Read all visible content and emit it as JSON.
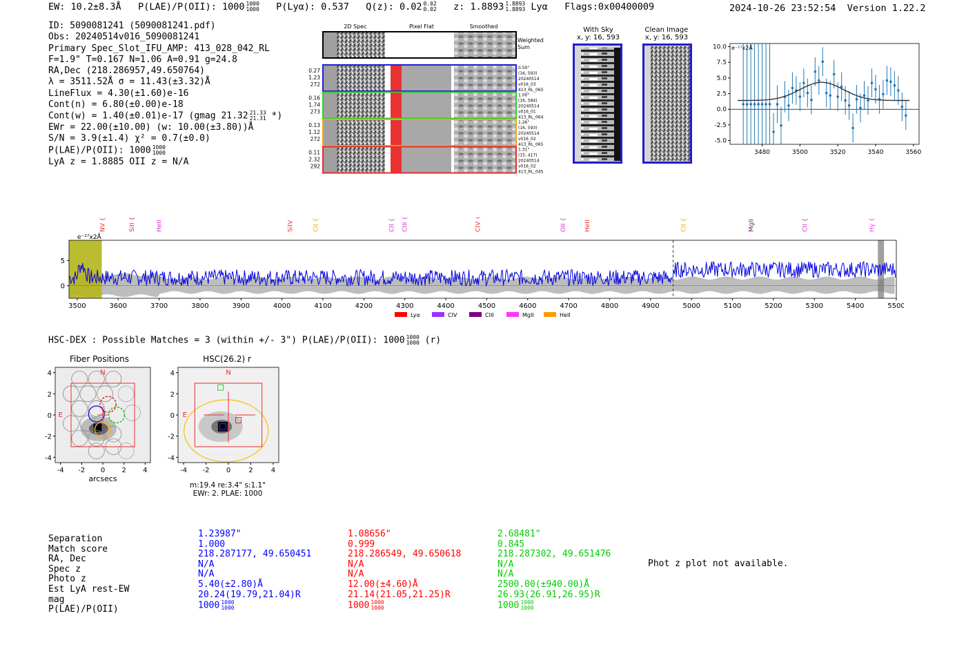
{
  "header": {
    "ew": "EW: 10.2±8.3Å",
    "plae_label": "P(LAE)/P(OII): 1000",
    "plae_sup": "1000",
    "plae_sub": "1000",
    "plya": "P(Lyα): 0.537",
    "qz_label": "Q(z): 0.02",
    "qz_sup": "0.02",
    "qz_sub": "0.02",
    "z_label": "z: 1.8893",
    "z_sup": "1.8893",
    "z_sub": "1.8893",
    "z_line": "Lyα",
    "flags": "Flags:0x00400009",
    "datetime": "2024-10-26 23:52:54",
    "version": "Version 1.22.2"
  },
  "info": {
    "id": "ID: 5090081241 (5090081241.pdf)",
    "obs": "Obs: 20240514v016_5090081241",
    "primary": "Primary Spec_Slot_IFU_AMP: 413_028_042_RL",
    "params": "F=1.9\"  T=0.167  N=1.06  A=0.91  g=24.8",
    "radec": "RA,Dec (218.286957,49.650764)",
    "lambda": "λ = 3511.52Å  σ = 11.43(±3.32)Å",
    "lineflux": "LineFlux = 4.30(±1.60)e-16",
    "contn": "Cont(n) = 6.80(±0.00)e-18",
    "contw": "Cont(w) = 1.40(±0.01)e-17 (gmag 21.32",
    "contw_sup": "21.33",
    "contw_sub": "21.31",
    "contw_end": "*)",
    "ewr": "EWr = 22.00(±10.00) (w: 10.00(±3.80))Å",
    "sn": "S/N = 3.9(±1.4)  χ² = 0.7(±0.0)",
    "plae": "P(LAE)/P(OII): 1000",
    "plae_sup": "1000",
    "plae_sub": "1000",
    "lyaz": "LyA z = 1.8885  OII z = N/A"
  },
  "cutouts": {
    "col_headers": [
      "2D Spec",
      "Pixel Flat",
      "Smoothed"
    ],
    "weighted_label": "Weighted Sum",
    "rows": [
      {
        "left": [
          "0.27",
          "1.23",
          "272"
        ],
        "right": [
          "0.50\"",
          "(16, 593)",
          "20240514",
          "v016_03",
          "413_RL_065"
        ],
        "color": "#1f1fd0"
      },
      {
        "left": [
          "0.16",
          "1.74",
          "273"
        ],
        "right": [
          "1.00\"",
          "(16, 584)",
          "20240514",
          "v016_01",
          "413_RL_064"
        ],
        "color": "#33cc33"
      },
      {
        "left": [
          "0.13",
          "1.12",
          "272"
        ],
        "right": [
          "1.26\"",
          "(16, 593)",
          "20240514",
          "v016_02",
          "413_RL_065"
        ],
        "color": "#f2a51a"
      },
      {
        "left": [
          "0.11",
          "2.32",
          "292"
        ],
        "right": [
          "1.31\"",
          "(15, 417)",
          "20240514",
          "v016_02",
          "413_RL_045"
        ],
        "color": "#e62e2e"
      }
    ],
    "with_sky_title": "With Sky",
    "with_sky_sub": "x, y: 16, 593",
    "clean_title": "Clean Image",
    "clean_sub": "x, y: 16, 593"
  },
  "fit_chart": {
    "type": "scatter",
    "scale_label": "e⁻¹⁷x2Å",
    "xlim": [
      3463,
      3563
    ],
    "ylim": [
      -5.6,
      10.5
    ],
    "xticks": [
      3480,
      3500,
      3520,
      3540,
      3560
    ],
    "yticks": [
      -5.0,
      -2.5,
      0.0,
      2.5,
      5.0,
      7.5,
      10.0
    ],
    "points": [
      [
        3470,
        0.8,
        12
      ],
      [
        3472,
        0.8,
        12
      ],
      [
        3474,
        0.8,
        12
      ],
      [
        3476,
        0.8,
        12
      ],
      [
        3478,
        0.8,
        12
      ],
      [
        3480,
        0.8,
        12
      ],
      [
        3482,
        0.8,
        12
      ],
      [
        3484,
        0.8,
        12
      ],
      [
        3486,
        -3.6,
        3
      ],
      [
        3488,
        0.8,
        3
      ],
      [
        3490,
        -2.6,
        3
      ],
      [
        3492,
        2.0,
        2.5
      ],
      [
        3494,
        0.6,
        2.5
      ],
      [
        3496,
        3.4,
        2.5
      ],
      [
        3498,
        3.0,
        2.3
      ],
      [
        3500,
        2.0,
        2.3
      ],
      [
        3502,
        4.2,
        2.3
      ],
      [
        3504,
        2.6,
        2.3
      ],
      [
        3506,
        1.5,
        2.3
      ],
      [
        3508,
        6.0,
        2.3
      ],
      [
        3510,
        4.6,
        2.3
      ],
      [
        3512,
        7.6,
        2.3
      ],
      [
        3514,
        2.6,
        2.3
      ],
      [
        3516,
        2.2,
        2.3
      ],
      [
        3518,
        5.6,
        2.3
      ],
      [
        3520,
        2.0,
        2.3
      ],
      [
        3522,
        3.6,
        2.3
      ],
      [
        3524,
        1.4,
        2.3
      ],
      [
        3526,
        0.6,
        2.3
      ],
      [
        3528,
        -3.0,
        2.3
      ],
      [
        3530,
        1.6,
        2.3
      ],
      [
        3532,
        0.2,
        2.3
      ],
      [
        3534,
        2.2,
        2.3
      ],
      [
        3536,
        1.4,
        2.3
      ],
      [
        3538,
        4.2,
        2.3
      ],
      [
        3540,
        3.2,
        2.3
      ],
      [
        3542,
        1.6,
        2.3
      ],
      [
        3544,
        2.4,
        2.3
      ],
      [
        3546,
        4.6,
        2.3
      ],
      [
        3548,
        4.4,
        2.3
      ],
      [
        3550,
        3.8,
        2.3
      ],
      [
        3552,
        3.0,
        2.3
      ],
      [
        3554,
        0.4,
        2.3
      ],
      [
        3556,
        -1.0,
        2.3
      ]
    ],
    "model": {
      "amplitude": 2.9,
      "center": 3511.5,
      "sigma": 11.4,
      "continuum": 1.4
    }
  },
  "spectrum": {
    "type": "line",
    "scale_label": "e⁻¹⁷x2Å",
    "xlim": [
      3480,
      5500
    ],
    "ylim": [
      -2.5,
      9.0
    ],
    "xticks": [
      3500,
      3600,
      3700,
      3800,
      3900,
      4000,
      4100,
      4200,
      4300,
      4400,
      4500,
      4600,
      4700,
      4800,
      4900,
      5000,
      5100,
      5200,
      5300,
      5400,
      5500
    ],
    "yticks": [
      0,
      5
    ],
    "highlight_range": [
      3480,
      3560
    ],
    "gray_range": [
      5455,
      5470
    ],
    "dashed_line_x": 4955,
    "lines": [
      {
        "label": "NV",
        "x": 3562,
        "color": "#e62e2e"
      },
      {
        "label": "SiII",
        "x": 3633,
        "color": "#e62e2e"
      },
      {
        "label": "HeII",
        "x": 3700,
        "color": "#cc33cc"
      },
      {
        "label": "SiIV",
        "x": 4020,
        "color": "#e62e2e"
      },
      {
        "label": "CII",
        "x": 4082,
        "color": "#f2a51a"
      },
      {
        "label": "CII",
        "x": 4268,
        "color": "#cc33cc"
      },
      {
        "label": "CIII",
        "x": 4300,
        "color": "#cc33cc"
      },
      {
        "label": "CIV",
        "x": 4478,
        "color": "#e62e2e"
      },
      {
        "label": "OII",
        "x": 4686,
        "color": "#cc33cc"
      },
      {
        "label": "HeII",
        "x": 4745,
        "color": "#e62e2e"
      },
      {
        "label": "CII",
        "x": 4980,
        "color": "#f2a51a"
      },
      {
        "label": "MgII",
        "x": 5145,
        "color": "#7a1f7a"
      },
      {
        "label": "CII",
        "x": 5277,
        "color": "#cc33cc"
      },
      {
        "label": "Hγ",
        "x": 5440,
        "color": "#ff33ff"
      }
    ],
    "legend": [
      {
        "label": "Lyα",
        "color": "#ff0000"
      },
      {
        "label": "CIV",
        "color": "#9933ff"
      },
      {
        "label": "CIII",
        "color": "#800080"
      },
      {
        "label": "MgII",
        "color": "#ff33ff"
      },
      {
        "label": "HeII",
        "color": "#ff9900"
      }
    ],
    "level_left": 1.6,
    "level_right": 3.2,
    "break_x": 4960,
    "noise_amp": 1.6
  },
  "hsc": {
    "title": "HSC-DEX : Possible Matches = 3 (within +/- 3\")  P(LAE)/P(OII): 1000",
    "plae_sup": "1000",
    "plae_sub": "1000",
    "band": "(r)"
  },
  "fiber_panel": {
    "title": "Fiber Positions",
    "xlabel": "arcsecs",
    "xticks": [
      -4,
      -2,
      0,
      2,
      4
    ],
    "yticks": [
      4,
      2,
      0,
      -2,
      -4
    ],
    "north": "N",
    "east": "E"
  },
  "hsc_panel": {
    "title": "HSC(26.2) r",
    "xticks": [
      -4,
      -2,
      0,
      2,
      4
    ],
    "yticks": [
      4,
      2,
      0,
      -2,
      -4
    ],
    "north": "N",
    "east": "E",
    "caption1": "m:19.4  re:3.4\"  s:1.1\"",
    "caption2": "EWr: 2. PLAE: 1000"
  },
  "matches": {
    "labels": [
      "Separation",
      "Match score",
      "RA, Dec",
      "Spec z",
      "Photo z",
      "Est LyA rest-EW",
      "mag",
      "P(LAE)/P(OII)"
    ],
    "columns": [
      {
        "color": "#0000ff",
        "values": [
          "1.23987\"",
          "1.000",
          "218.287177, 49.650451",
          "N/A",
          "N/A",
          "5.40(±2.80)Å",
          "20.24(19.79,21.04)R",
          "1000"
        ],
        "plae_sup": "1000",
        "plae_sub": "1000"
      },
      {
        "color": "#ff0000",
        "values": [
          "1.08656\"",
          "0.999",
          "218.286549, 49.650618",
          "N/A",
          "N/A",
          "12.00(±4.60)Å",
          "21.14(21.05,21.25)R",
          "1000"
        ],
        "plae_sup": "1000",
        "plae_sub": "1000"
      },
      {
        "color": "#00cc00",
        "values": [
          "2.68481\"",
          "0.845",
          "218.287302, 49.651476",
          "N/A",
          "N/A",
          "2500.00(±940.00)Å",
          "26.93(26.91,26.95)R",
          "1000"
        ],
        "plae_sup": "1000",
        "plae_sub": "1000"
      }
    ],
    "photz_msg": "Phot z plot not available."
  }
}
